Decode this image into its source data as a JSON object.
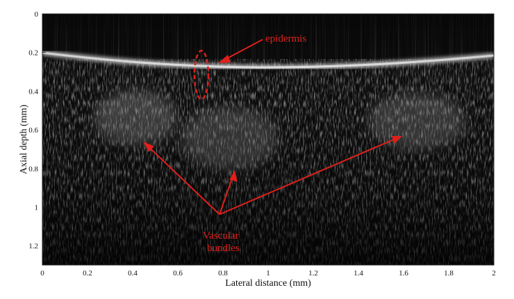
{
  "x_axis": {
    "label": "Lateral distance (mm)",
    "ticks": [
      "0",
      "0.2",
      "0.4",
      "0.6",
      "0.8",
      "1",
      "1.2",
      "1.4",
      "1.6",
      "1.8",
      "2"
    ],
    "range": [
      0,
      2
    ]
  },
  "y_axis": {
    "label": "Axial depth (mm)",
    "ticks": [
      "0",
      "0.2",
      "0.4",
      "0.6",
      "0.8",
      "1",
      "1.2"
    ],
    "range": [
      0,
      1.3
    ]
  },
  "annotations": {
    "epidermis_label": "epidermis",
    "vascular_label_line1": "Vascular",
    "vascular_label_line2": "bundles"
  },
  "colors": {
    "annotation": "#e0201b",
    "image_background": "#0c0c0c",
    "epidermis_band": "#f2f2f2"
  }
}
